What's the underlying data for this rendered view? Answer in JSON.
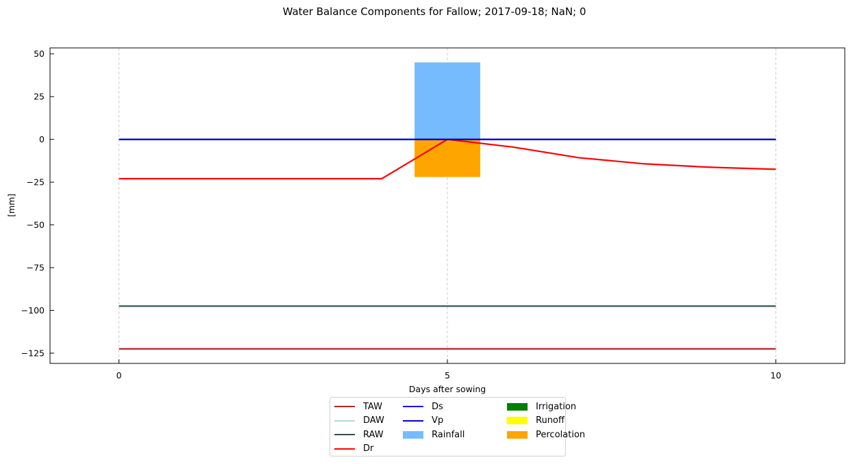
{
  "chart_data": {
    "type": "line",
    "title": "Water Balance Components for Fallow; 2017-09-18; NaN; 0",
    "xlabel": "Days after sowing",
    "ylabel": "[mm]",
    "xlim": [
      -1.05,
      11.05
    ],
    "ylim": [
      -131,
      53.5
    ],
    "xticks": [
      0,
      5,
      10
    ],
    "yticks": [
      50,
      25,
      0,
      -25,
      -50,
      -75,
      -100,
      -125
    ],
    "ytick_labels": [
      "50",
      "25",
      "0",
      "−25",
      "−50",
      "−75",
      "−100",
      "−125"
    ],
    "grid": "x-dashed",
    "legend_placement": "below",
    "x": [
      0,
      1,
      2,
      3,
      4,
      5,
      6,
      7,
      8,
      9,
      10
    ],
    "series": [
      {
        "name": "TAW",
        "kind": "line",
        "color": "#b22222",
        "values": [
          -122.5,
          -122.5,
          -122.5,
          -122.5,
          -122.5,
          -122.5,
          -122.5,
          -122.5,
          -122.5,
          -122.5,
          -122.5
        ]
      },
      {
        "name": "DAW",
        "kind": "line",
        "color": "#add8e6",
        "values": [
          -97.5,
          -97.5,
          -97.5,
          -97.5,
          -97.5,
          -97.5,
          -97.5,
          -97.5,
          -97.5,
          -97.5,
          -97.5
        ]
      },
      {
        "name": "RAW",
        "kind": "line",
        "color": "#2f4f4f",
        "values": [
          -97.5,
          -97.5,
          -97.5,
          -97.5,
          -97.5,
          -97.5,
          -97.5,
          -97.5,
          -97.5,
          -97.5,
          -97.5
        ]
      },
      {
        "name": "Dr",
        "kind": "line",
        "color": "#ff0000",
        "values": [
          -23,
          -23,
          -23,
          -23,
          -23,
          0,
          -4.5,
          -10.7,
          -14.3,
          -16.3,
          -17.5
        ]
      },
      {
        "name": "Ds",
        "kind": "line",
        "color": "#0000ff",
        "values": [
          0,
          0,
          0,
          0,
          0,
          0,
          0,
          0,
          0,
          0,
          0
        ]
      },
      {
        "name": "Vp",
        "kind": "line",
        "color": "#0000cc",
        "values": [
          0,
          0,
          0,
          0,
          0,
          0,
          0,
          0,
          0,
          0,
          0
        ]
      },
      {
        "name": "Rainfall",
        "kind": "bar",
        "color": "#77bbff",
        "values": [
          0,
          0,
          0,
          0,
          0,
          45,
          0,
          0,
          0,
          0,
          0
        ]
      },
      {
        "name": "Irrigation",
        "kind": "bar",
        "color": "#008000",
        "values": [
          0,
          0,
          0,
          0,
          0,
          0,
          0,
          0,
          0,
          0,
          0
        ]
      },
      {
        "name": "Runoff",
        "kind": "bar",
        "color": "#ffff00",
        "values": [
          0,
          0,
          0,
          0,
          0,
          0,
          0,
          0,
          0,
          0,
          0
        ]
      },
      {
        "name": "Percolation",
        "kind": "bar",
        "color": "#ffa500",
        "values": [
          0,
          0,
          0,
          0,
          0,
          -22,
          0,
          0,
          0,
          0,
          0
        ]
      }
    ],
    "legend_columns": [
      [
        "TAW",
        "DAW",
        "RAW",
        "Dr"
      ],
      [
        "Ds",
        "Vp",
        "Rainfall"
      ],
      [
        "Irrigation",
        "Runoff",
        "Percolation"
      ]
    ]
  }
}
